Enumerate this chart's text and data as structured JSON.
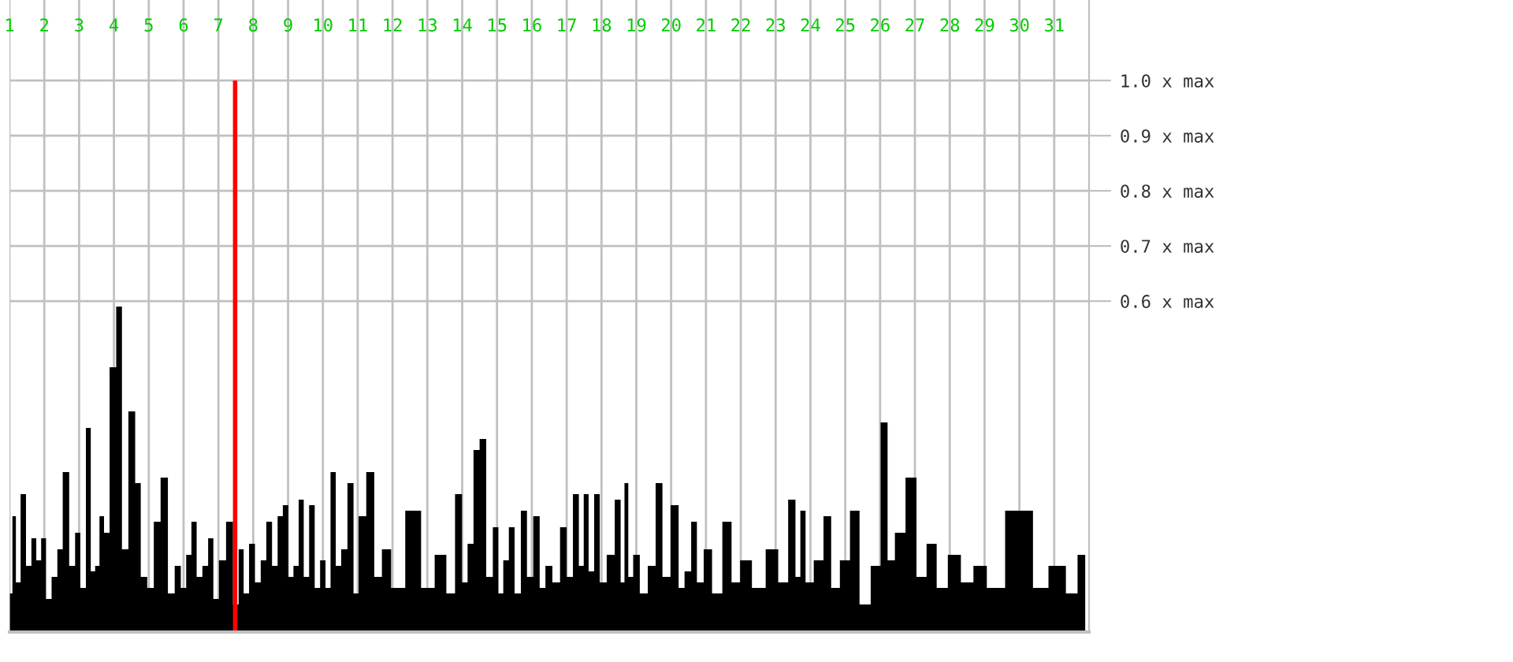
{
  "chart_data": {
    "type": "area",
    "x": [
      1.05,
      1.12,
      1.25,
      1.39,
      1.56,
      1.7,
      1.84,
      1.98,
      2.12,
      2.3,
      2.45,
      2.61,
      2.82,
      2.95,
      3.12,
      3.27,
      3.4,
      3.52,
      3.65,
      3.78,
      3.97,
      4.16,
      4.3,
      4.53,
      4.69,
      4.85,
      5.06,
      5.23,
      5.45,
      5.65,
      5.84,
      6.0,
      6.15,
      6.3,
      6.45,
      6.63,
      6.78,
      6.93,
      7.1,
      7.34,
      7.5,
      7.66,
      7.79,
      7.97,
      8.13,
      8.3,
      8.45,
      8.63,
      8.77,
      8.93,
      9.08,
      9.23,
      9.38,
      9.52,
      9.69,
      9.84,
      10.0,
      10.15,
      10.29,
      10.45,
      10.6,
      10.81,
      10.95,
      11.1,
      11.39,
      11.56,
      11.83,
      12.09,
      12.64,
      13.0,
      13.42,
      13.67,
      13.92,
      14.07,
      14.24,
      14.41,
      14.59,
      14.79,
      14.97,
      15.11,
      15.25,
      15.43,
      15.58,
      15.79,
      15.93,
      16.15,
      16.3,
      16.48,
      16.7,
      16.92,
      17.08,
      17.28,
      17.42,
      17.56,
      17.7,
      17.88,
      18.02,
      18.28,
      18.48,
      18.62,
      18.7,
      18.84,
      18.98,
      19.22,
      19.44,
      19.67,
      19.83,
      20.14,
      20.29,
      20.48,
      20.67,
      20.81,
      21.06,
      21.29,
      21.65,
      21.82,
      22.14,
      22.5,
      22.93,
      23.22,
      23.5,
      23.64,
      23.78,
      23.94,
      24.25,
      24.5,
      24.69,
      25.0,
      25.27,
      25.55,
      25.91,
      26.12,
      26.31,
      26.54,
      26.92,
      27.17,
      27.5,
      27.75,
      28.14,
      28.5,
      28.86,
      29.27,
      29.91,
      30.22,
      30.56,
      31.11,
      31.56,
      31.78
    ],
    "series": [
      {
        "color": "#000000",
        "values": [
          0.07,
          0.21,
          0.09,
          0.25,
          0.12,
          0.17,
          0.13,
          0.17,
          0.06,
          0.1,
          0.15,
          0.29,
          0.12,
          0.18,
          0.08,
          0.37,
          0.11,
          0.12,
          0.21,
          0.18,
          0.48,
          0.59,
          0.15,
          0.4,
          0.27,
          0.1,
          0.08,
          0.2,
          0.28,
          0.07,
          0.12,
          0.08,
          0.14,
          0.2,
          0.1,
          0.12,
          0.17,
          0.06,
          0.13,
          0.2,
          0.05,
          0.15,
          0.07,
          0.16,
          0.09,
          0.13,
          0.2,
          0.12,
          0.21,
          0.23,
          0.1,
          0.12,
          0.24,
          0.1,
          0.23,
          0.08,
          0.13,
          0.08,
          0.29,
          0.12,
          0.15,
          0.27,
          0.07,
          0.21,
          0.29,
          0.1,
          0.15,
          0.08,
          0.22,
          0.08,
          0.14,
          0.07,
          0.25,
          0.09,
          0.16,
          0.33,
          0.35,
          0.1,
          0.19,
          0.07,
          0.13,
          0.19,
          0.07,
          0.22,
          0.1,
          0.21,
          0.08,
          0.12,
          0.09,
          0.19,
          0.1,
          0.25,
          0.12,
          0.25,
          0.11,
          0.25,
          0.09,
          0.14,
          0.24,
          0.09,
          0.27,
          0.1,
          0.14,
          0.07,
          0.12,
          0.27,
          0.1,
          0.23,
          0.08,
          0.11,
          0.2,
          0.09,
          0.15,
          0.07,
          0.2,
          0.09,
          0.13,
          0.08,
          0.15,
          0.09,
          0.24,
          0.1,
          0.22,
          0.09,
          0.13,
          0.21,
          0.08,
          0.13,
          0.22,
          0.05,
          0.12,
          0.38,
          0.13,
          0.18,
          0.28,
          0.1,
          0.16,
          0.08,
          0.14,
          0.09,
          0.12,
          0.08,
          0.22,
          0.22,
          0.08,
          0.12,
          0.07,
          0.14
        ]
      }
    ],
    "xlim": [
      1,
      32
    ],
    "xticks": [
      1,
      2,
      3,
      4,
      5,
      6,
      7,
      8,
      9,
      10,
      11,
      12,
      13,
      14,
      15,
      16,
      17,
      18,
      19,
      20,
      21,
      22,
      23,
      24,
      25,
      26,
      27,
      28,
      29,
      30,
      31
    ],
    "ylim": [
      0,
      1.146
    ],
    "yticks": [
      {
        "value": 0.6,
        "label": "0.6 x max"
      },
      {
        "value": 0.7,
        "label": "0.7 x max"
      },
      {
        "value": 0.8,
        "label": "0.8 x max"
      },
      {
        "value": 0.9,
        "label": "0.9 x max"
      },
      {
        "value": 1.0,
        "label": "1.0 x max"
      }
    ],
    "ref_lines": [
      {
        "axis": "x",
        "value": 7.48,
        "color": "#ff0000"
      }
    ],
    "grid": true
  }
}
